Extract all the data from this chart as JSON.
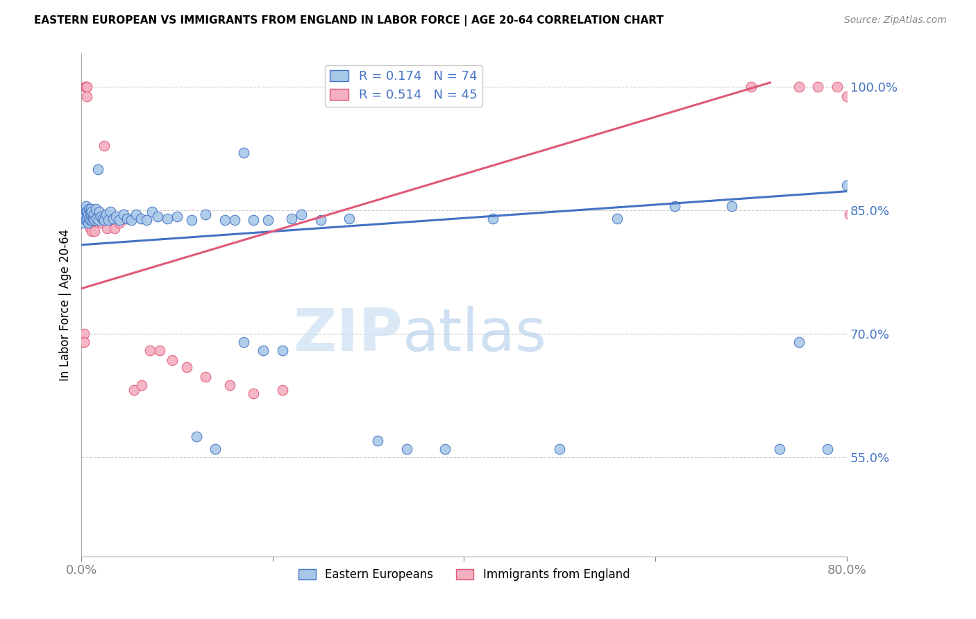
{
  "title": "EASTERN EUROPEAN VS IMMIGRANTS FROM ENGLAND IN LABOR FORCE | AGE 20-64 CORRELATION CHART",
  "source": "Source: ZipAtlas.com",
  "ylabel": "In Labor Force | Age 20-64",
  "xlim": [
    0.0,
    0.8
  ],
  "ylim": [
    0.43,
    1.04
  ],
  "yticks": [
    0.55,
    0.7,
    0.85,
    1.0
  ],
  "ytick_labels": [
    "55.0%",
    "70.0%",
    "85.0%",
    "100.0%"
  ],
  "xticks": [
    0.0,
    0.2,
    0.4,
    0.6,
    0.8
  ],
  "xtick_labels": [
    "0.0%",
    "",
    "",
    "",
    "80.0%"
  ],
  "blue_R": 0.174,
  "blue_N": 74,
  "pink_R": 0.514,
  "pink_N": 45,
  "blue_color": "#a8c8e8",
  "pink_color": "#f4b0c0",
  "blue_line_color": "#4472c4",
  "pink_line_color": "#e05878",
  "watermark_zip": "ZIP",
  "watermark_atlas": "atlas",
  "legend_label_blue": "Eastern Europeans",
  "legend_label_pink": "Immigrants from England",
  "blue_x": [
    0.002,
    0.003,
    0.004,
    0.004,
    0.005,
    0.005,
    0.005,
    0.006,
    0.006,
    0.007,
    0.007,
    0.008,
    0.008,
    0.009,
    0.009,
    0.01,
    0.01,
    0.011,
    0.011,
    0.012,
    0.013,
    0.014,
    0.015,
    0.016,
    0.017,
    0.018,
    0.019,
    0.02,
    0.022,
    0.024,
    0.026,
    0.028,
    0.03,
    0.033,
    0.036,
    0.04,
    0.044,
    0.048,
    0.052,
    0.057,
    0.062,
    0.068,
    0.074,
    0.08,
    0.09,
    0.1,
    0.115,
    0.13,
    0.15,
    0.17,
    0.195,
    0.22,
    0.25,
    0.28,
    0.17,
    0.19,
    0.21,
    0.23,
    0.31,
    0.34,
    0.38,
    0.43,
    0.5,
    0.56,
    0.62,
    0.68,
    0.73,
    0.75,
    0.78,
    0.8,
    0.12,
    0.14,
    0.16,
    0.18
  ],
  "blue_y": [
    0.835,
    0.84,
    0.845,
    0.85,
    0.838,
    0.848,
    0.855,
    0.84,
    0.848,
    0.835,
    0.845,
    0.852,
    0.84,
    0.848,
    0.838,
    0.845,
    0.852,
    0.838,
    0.848,
    0.84,
    0.845,
    0.838,
    0.852,
    0.84,
    0.9,
    0.838,
    0.848,
    0.842,
    0.84,
    0.838,
    0.845,
    0.838,
    0.848,
    0.84,
    0.842,
    0.838,
    0.845,
    0.84,
    0.838,
    0.845,
    0.84,
    0.838,
    0.848,
    0.842,
    0.84,
    0.842,
    0.838,
    0.845,
    0.838,
    0.92,
    0.838,
    0.84,
    0.838,
    0.84,
    0.69,
    0.68,
    0.68,
    0.845,
    0.57,
    0.56,
    0.56,
    0.84,
    0.56,
    0.84,
    0.855,
    0.855,
    0.56,
    0.69,
    0.56,
    0.88,
    0.575,
    0.56,
    0.838,
    0.838
  ],
  "pink_x": [
    0.003,
    0.003,
    0.004,
    0.005,
    0.006,
    0.006,
    0.007,
    0.007,
    0.008,
    0.009,
    0.01,
    0.01,
    0.011,
    0.012,
    0.013,
    0.014,
    0.015,
    0.017,
    0.019,
    0.021,
    0.024,
    0.027,
    0.03,
    0.035,
    0.04,
    0.046,
    0.055,
    0.063,
    0.072,
    0.082,
    0.095,
    0.11,
    0.13,
    0.155,
    0.18,
    0.21,
    0.7,
    0.75,
    0.77,
    0.79,
    0.8,
    0.803,
    0.808,
    0.81,
    0.812
  ],
  "pink_y": [
    0.7,
    0.69,
    1.0,
    1.0,
    1.0,
    0.988,
    0.838,
    0.848,
    0.835,
    0.828,
    0.838,
    0.848,
    0.825,
    0.84,
    0.848,
    0.825,
    0.838,
    0.848,
    0.84,
    0.835,
    0.928,
    0.828,
    0.838,
    0.828,
    0.835,
    0.84,
    0.632,
    0.638,
    0.68,
    0.68,
    0.668,
    0.66,
    0.648,
    0.638,
    0.628,
    0.632,
    1.0,
    1.0,
    1.0,
    1.0,
    0.988,
    0.845,
    0.838,
    0.838,
    0.838
  ]
}
